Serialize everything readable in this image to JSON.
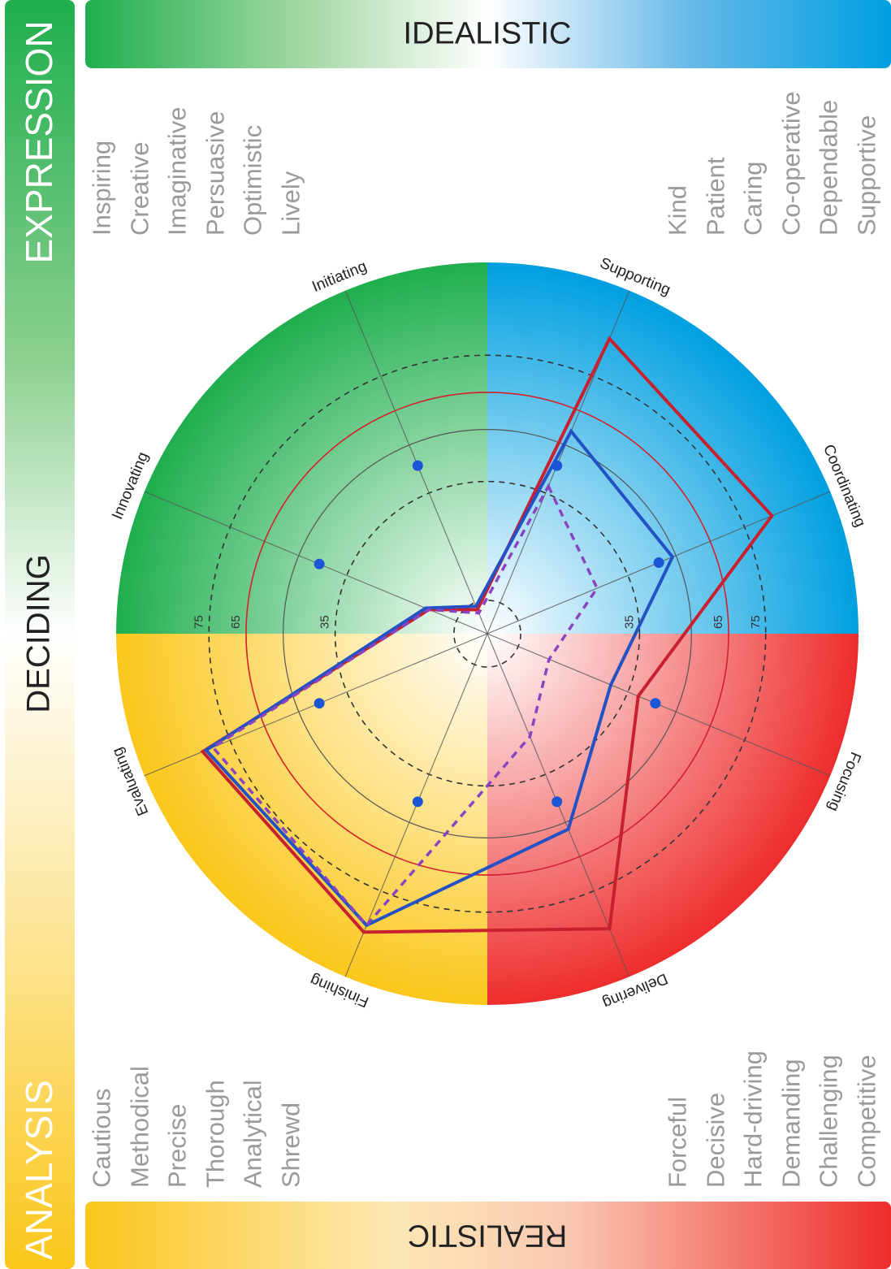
{
  "sidebar": {
    "top_label": "EXPRESSION",
    "middle_label": "DECIDING",
    "bottom_label": "ANALYSIS"
  },
  "header": {
    "label": "IDEALISTIC"
  },
  "footer": {
    "label": "REALISTIC"
  },
  "traits": {
    "top_left": [
      "Inspiring",
      "Creative",
      "Imaginative",
      "Persuasive",
      "Optimistic",
      "Lively"
    ],
    "top_right": [
      "Kind",
      "Patient",
      "Caring",
      "Co-operative",
      "Dependable",
      "Supportive"
    ],
    "bottom_left": [
      "Cautious",
      "Methodical",
      "Precise",
      "Thorough",
      "Analytical",
      "Shrewd"
    ],
    "bottom_right": [
      "Forceful",
      "Decisive",
      "Hard-driving",
      "Demanding",
      "Challenging",
      "Competitive"
    ]
  },
  "colors": {
    "green": "#1fae4e",
    "blue": "#009fe0",
    "red": "#ee2d2d",
    "yellow": "#fbc71c",
    "series_red": "#c8202e",
    "series_blue": "#2451c4",
    "series_purple": "#8a44c0",
    "points": "#1a56d6"
  },
  "chart_data": {
    "type": "radar",
    "axes": [
      "Supporting",
      "Coordinating",
      "Focusing",
      "Delivering",
      "Finishing",
      "Evaluating",
      "Innovating",
      "Initiating"
    ],
    "ring_labels": [
      "35",
      "65",
      "75"
    ],
    "rings": [
      {
        "value": 9,
        "style": "dashed"
      },
      {
        "value": 41,
        "style": "dashed"
      },
      {
        "value": 55,
        "style": "solid-grey"
      },
      {
        "value": 65,
        "style": "solid-red"
      },
      {
        "value": 75,
        "style": "dashed"
      }
    ],
    "rmax": 100,
    "series": [
      {
        "values": [
          86,
          83,
          44,
          86,
          87,
          83,
          17,
          7
        ]
      },
      {
        "values": [
          59,
          54,
          36,
          57,
          85,
          82,
          18,
          8
        ]
      },
      {
        "values": [
          43,
          32,
          18,
          30,
          85,
          80,
          17,
          6
        ]
      }
    ],
    "points": [
      49,
      50,
      49,
      49,
      49,
      49,
      49,
      49
    ]
  }
}
